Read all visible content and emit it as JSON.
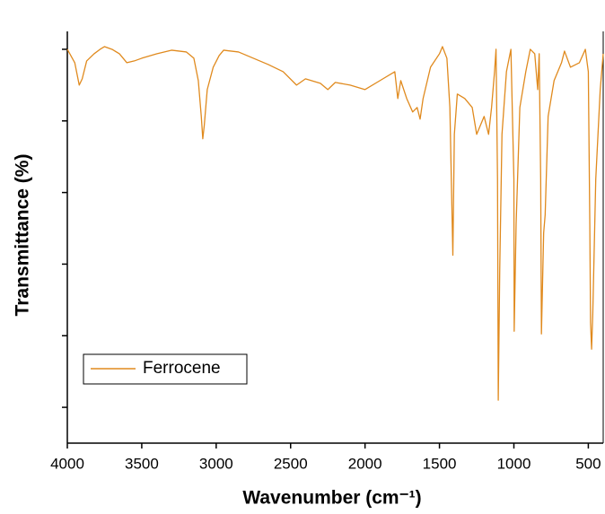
{
  "chart_data": {
    "type": "line",
    "xlabel": "Wavenumber (cm⁻¹)",
    "ylabel": "Transmittance (%)",
    "x": [
      4000,
      3950,
      3920,
      3900,
      3870,
      3820,
      3780,
      3750,
      3700,
      3650,
      3600,
      3550,
      3500,
      3400,
      3300,
      3200,
      3150,
      3120,
      3100,
      3090,
      3080,
      3060,
      3020,
      2980,
      2950,
      2850,
      2750,
      2650,
      2550,
      2460,
      2400,
      2300,
      2250,
      2200,
      2100,
      2000,
      1900,
      1800,
      1780,
      1760,
      1720,
      1680,
      1650,
      1630,
      1610,
      1560,
      1500,
      1480,
      1450,
      1430,
      1410,
      1400,
      1380,
      1330,
      1280,
      1250,
      1200,
      1170,
      1150,
      1130,
      1120,
      1110,
      1105,
      1095,
      1080,
      1050,
      1020,
      1000,
      998,
      985,
      960,
      920,
      890,
      860,
      840,
      830,
      820,
      815,
      800,
      790,
      770,
      730,
      680,
      660,
      620,
      560,
      520,
      500,
      490,
      485,
      478,
      470,
      450,
      420,
      400
    ],
    "series": [
      {
        "name": "Ferrocene",
        "color": "#e08a1e",
        "values": [
          100,
          96.25,
          90,
          91.75,
          96.75,
          98.75,
          100,
          100.75,
          100,
          98.75,
          96.25,
          96.75,
          97.5,
          98.75,
          99.75,
          99.25,
          97.5,
          91.25,
          81.25,
          75,
          78.75,
          88.75,
          95,
          98.25,
          99.75,
          99.25,
          97.5,
          95.75,
          93.75,
          90,
          91.75,
          90.5,
          88.75,
          90.75,
          90,
          88.75,
          91.25,
          93.75,
          86.25,
          91.25,
          86.25,
          82.5,
          83.75,
          80.5,
          86.25,
          95,
          98.75,
          100.75,
          97.5,
          83.75,
          42.5,
          76.25,
          87.5,
          86.25,
          83.75,
          76.25,
          81.25,
          76.25,
          83.75,
          93.75,
          100,
          63.75,
          2,
          38.75,
          76.25,
          93.75,
          100,
          63.75,
          21.25,
          51.25,
          83.75,
          93.75,
          100,
          98.75,
          88.75,
          98.75,
          63.75,
          20.5,
          48.75,
          53.75,
          81.25,
          91.25,
          96.25,
          99.5,
          95,
          96.25,
          100,
          93.75,
          51.25,
          23.75,
          16.25,
          26.25,
          63.75,
          88.75,
          98.75
        ]
      }
    ],
    "xlim": [
      4000,
      400
    ],
    "xticks": [
      4000,
      3500,
      3000,
      2500,
      2000,
      1500,
      1000,
      500
    ],
    "ylim": [
      -10,
      105
    ],
    "yticks": [
      0,
      20,
      40,
      60,
      80,
      100
    ],
    "legend": "lower left"
  }
}
